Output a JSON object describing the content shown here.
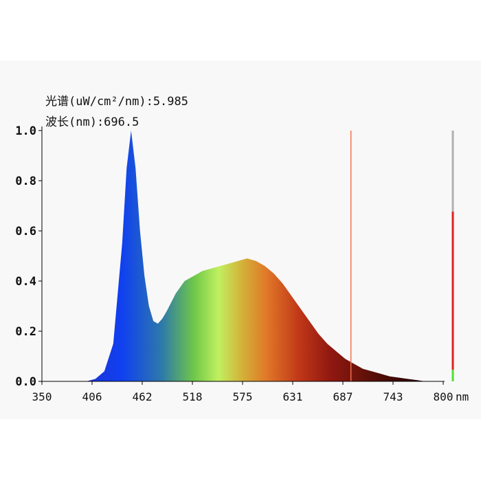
{
  "readout": {
    "spectrum_label": "光谱(uW/cm²/nm):5.985",
    "wavelength_label": "波长(nm):696.5"
  },
  "chart_data": {
    "type": "area",
    "title": "",
    "xlabel": "",
    "ylabel": "",
    "x_unit": "nm",
    "xlim": [
      350,
      800
    ],
    "ylim": [
      0,
      1.0
    ],
    "x_ticks": [
      "350",
      "406",
      "462",
      "518",
      "575",
      "631",
      "687",
      "743",
      "800"
    ],
    "y_ticks": [
      "0.0",
      "0.2",
      "0.4",
      "0.6",
      "0.8",
      "1.0"
    ],
    "cursor_wavelength": 696.5,
    "fill": "visible-spectrum gradient",
    "x": [
      400,
      410,
      420,
      430,
      440,
      445,
      450,
      455,
      460,
      465,
      470,
      475,
      480,
      485,
      490,
      500,
      510,
      520,
      530,
      540,
      550,
      560,
      570,
      580,
      590,
      600,
      610,
      620,
      630,
      640,
      650,
      660,
      670,
      680,
      690,
      700,
      710,
      720,
      730,
      740,
      750,
      760,
      770,
      780
    ],
    "y": [
      0,
      0.01,
      0.04,
      0.15,
      0.55,
      0.85,
      1.0,
      0.85,
      0.6,
      0.42,
      0.3,
      0.24,
      0.23,
      0.25,
      0.28,
      0.35,
      0.4,
      0.42,
      0.44,
      0.45,
      0.46,
      0.47,
      0.48,
      0.49,
      0.48,
      0.46,
      0.43,
      0.39,
      0.34,
      0.29,
      0.24,
      0.19,
      0.15,
      0.12,
      0.09,
      0.07,
      0.05,
      0.04,
      0.03,
      0.02,
      0.015,
      0.01,
      0.005,
      0
    ]
  },
  "level_bar": {
    "gray": "#b0b0b0",
    "red": "#e02020",
    "green": "#50e030"
  },
  "colors": {
    "cursor": "#f07050"
  }
}
